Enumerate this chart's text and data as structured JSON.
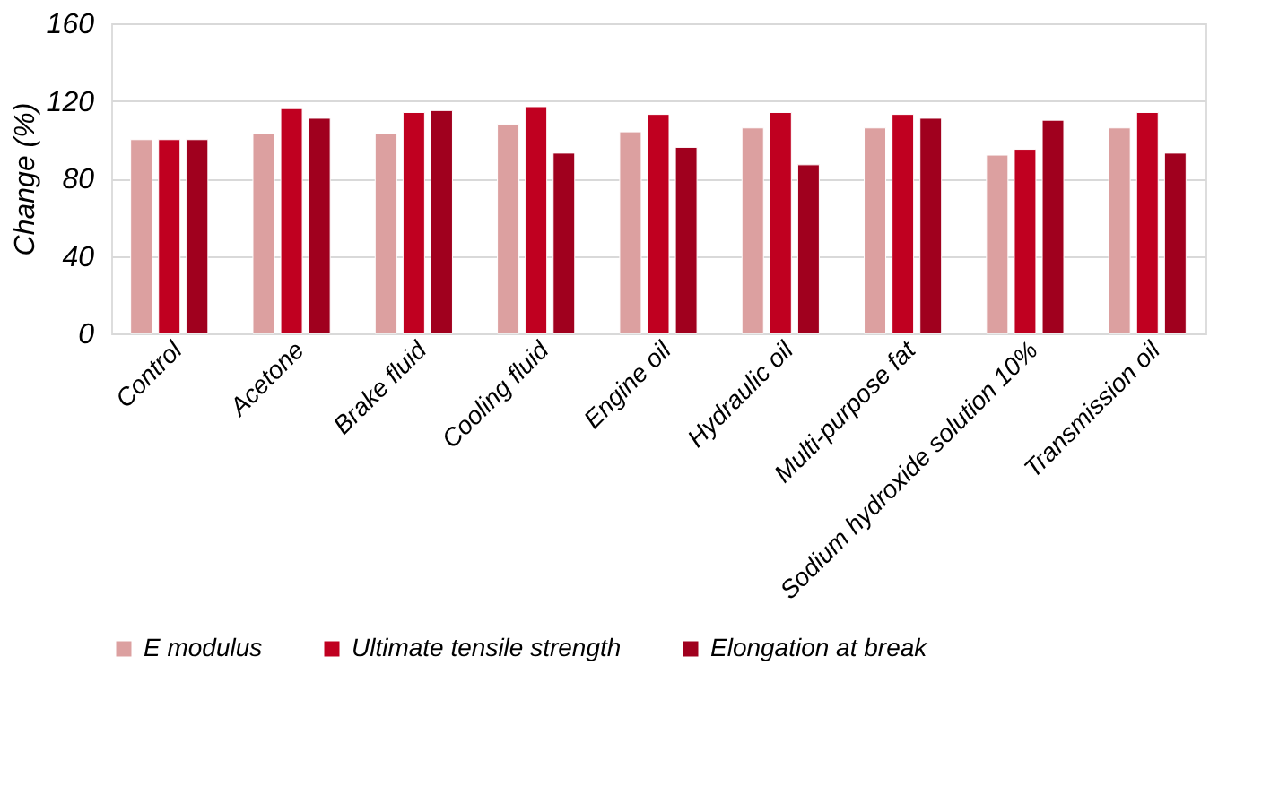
{
  "chart_data": {
    "type": "bar",
    "ylabel": "Change (%)",
    "categories": [
      "Control",
      "Acetone",
      "Brake fluid",
      "Cooling fluid",
      "Engine oil",
      "Hydraulic oil",
      "Multi-purpose fat",
      "Sodium hydroxide solution 10%",
      "Transmission oil"
    ],
    "series": [
      {
        "name": "E modulus",
        "color": "#dca0a0",
        "values": [
          100,
          103,
          103,
          108,
          104,
          106,
          106,
          92,
          106
        ]
      },
      {
        "name": "Ultimate tensile strength",
        "color": "#c00020",
        "values": [
          100,
          116,
          114,
          117,
          113,
          114,
          113,
          95,
          114
        ]
      },
      {
        "name": "Elongation at break",
        "color": "#a0001e",
        "values": [
          100,
          111,
          115,
          93,
          96,
          87,
          111,
          110,
          93
        ]
      }
    ],
    "ylim": [
      0,
      160
    ],
    "yticks": [
      0,
      40,
      80,
      120,
      160
    ],
    "grid": "y",
    "legend": "bottom"
  }
}
